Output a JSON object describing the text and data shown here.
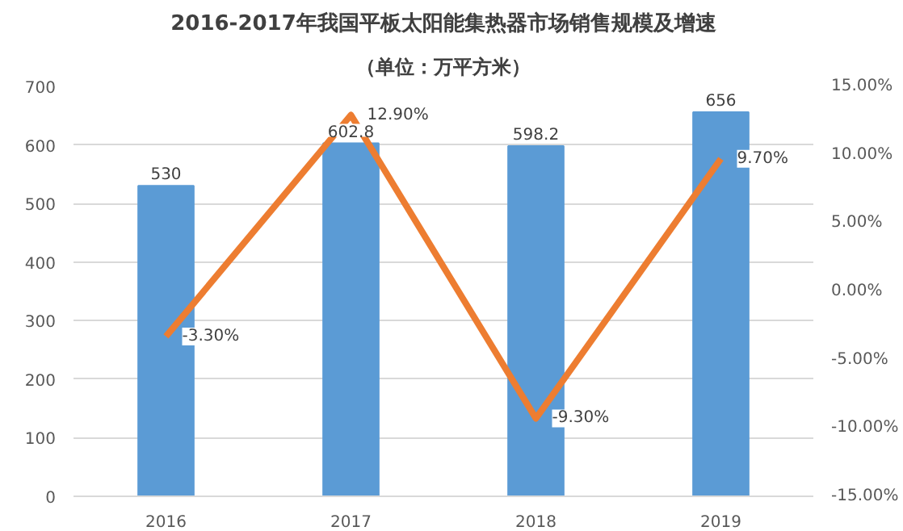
{
  "chart_data": {
    "type": "bar",
    "title": "2016-2017年我国平板太阳能集热器市场销售规模及增速",
    "subtitle": "（单位：万平方米）",
    "categories": [
      "2016",
      "2017",
      "2018",
      "2019"
    ],
    "series": [
      {
        "color": "#5b9bd5",
        "values": [
          530,
          602.8,
          598.2,
          656
        ]
      },
      {
        "type": "line",
        "axis": "y2",
        "color": "#ed7d31",
        "values": [
          -3.3,
          12.9,
          -9.3,
          9.7
        ],
        "value_labels": [
          "-3.30%",
          "12.90%",
          "-9.30%",
          "9.70%"
        ]
      }
    ],
    "data_labels": true,
    "ylim": [
      0,
      700
    ],
    "yticks": [
      0,
      100,
      200,
      300,
      400,
      500,
      600,
      700
    ],
    "y2lim": [
      -15,
      15
    ],
    "y2ticks": [
      {
        "value": -15,
        "label": "-15.00%"
      },
      {
        "value": -10,
        "label": "-10.00%"
      },
      {
        "value": -5,
        "label": "-5.00%"
      },
      {
        "value": 0,
        "label": "0.00%"
      },
      {
        "value": 5,
        "label": "5.00%"
      },
      {
        "value": 10,
        "label": "10.00%"
      },
      {
        "value": 15,
        "label": "15.00%"
      }
    ],
    "grid": "y"
  }
}
